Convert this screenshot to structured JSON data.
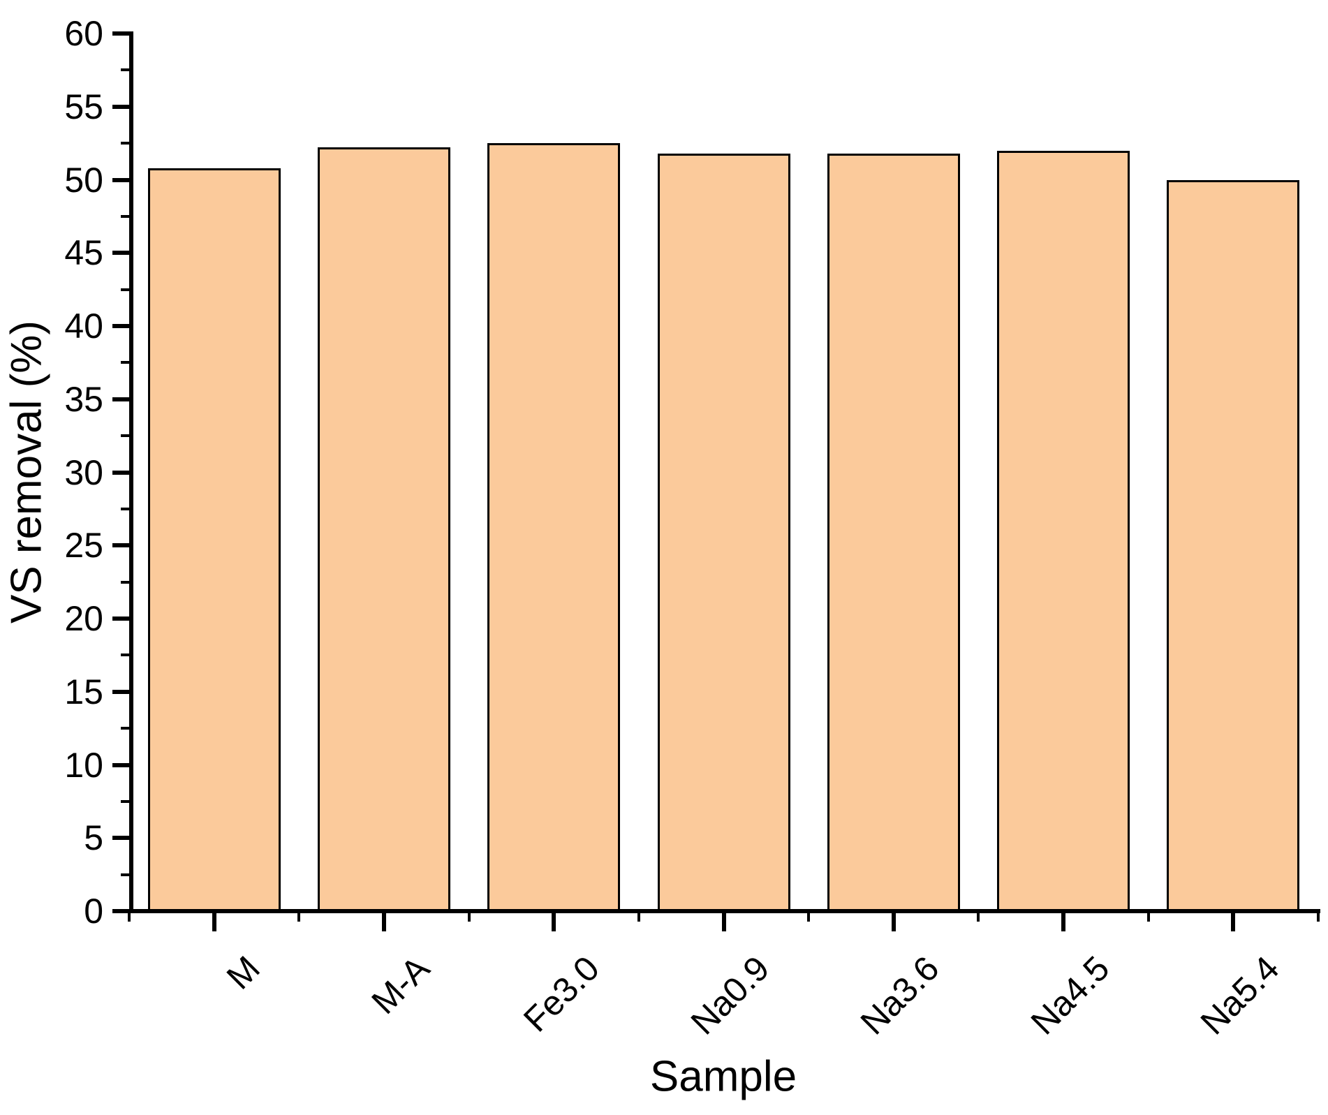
{
  "chart_data": {
    "type": "bar",
    "title": "",
    "xlabel": "Sample",
    "ylabel": "VS removal (%)",
    "categories": [
      "M",
      "M-A",
      "Fe3.0",
      "Na0.9",
      "Na3.6",
      "Na4.5",
      "Na5.4"
    ],
    "values": [
      50.8,
      52.2,
      52.5,
      51.8,
      51.8,
      52.0,
      50.0
    ],
    "ylim": [
      0,
      60
    ],
    "y_major_step": 5,
    "y_minor_step": 2.5,
    "y_tick_labels": [
      "0",
      "5",
      "10",
      "15",
      "20",
      "25",
      "30",
      "35",
      "40",
      "45",
      "50",
      "55",
      "60"
    ],
    "grid": false,
    "legend": "none",
    "x_tick_rotation_deg": 45,
    "colors": {
      "bar_fill": "#FBCA9B",
      "bar_border": "#000000",
      "axis": "#000000",
      "text": "#000000",
      "background": "#FFFFFF"
    }
  }
}
